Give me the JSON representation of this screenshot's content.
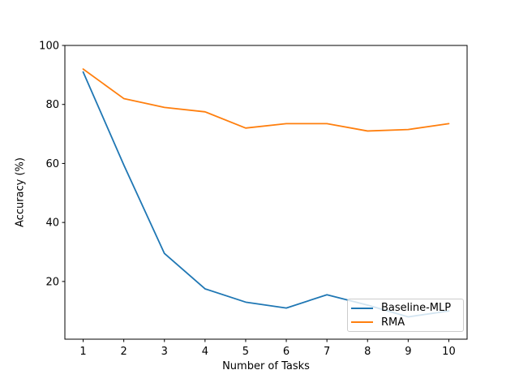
{
  "chart_data": {
    "type": "line",
    "x": [
      1,
      2,
      3,
      4,
      5,
      6,
      7,
      8,
      9,
      10
    ],
    "series": [
      {
        "name": "Baseline-MLP",
        "color": "#1f77b4",
        "values": [
          91,
          59.5,
          29.5,
          17.5,
          13,
          11,
          15.5,
          12,
          8,
          10
        ]
      },
      {
        "name": "RMA",
        "color": "#ff7f0e",
        "values": [
          92,
          82,
          79,
          77.5,
          72,
          73.5,
          73.5,
          71,
          71.5,
          73.5
        ]
      }
    ],
    "title": "",
    "xlabel": "Number of Tasks",
    "ylabel": "Accuracy (%)",
    "xticks": [
      "1",
      "2",
      "3",
      "4",
      "5",
      "6",
      "7",
      "8",
      "9",
      "10"
    ],
    "yticks": [
      "20",
      "40",
      "60",
      "80",
      "100"
    ],
    "xlim": [
      0.55,
      10.45
    ],
    "ylim": [
      0.44,
      100
    ],
    "grid": false,
    "legend_position": "lower right",
    "axis_color": "#000000",
    "background_color": "#ffffff"
  }
}
